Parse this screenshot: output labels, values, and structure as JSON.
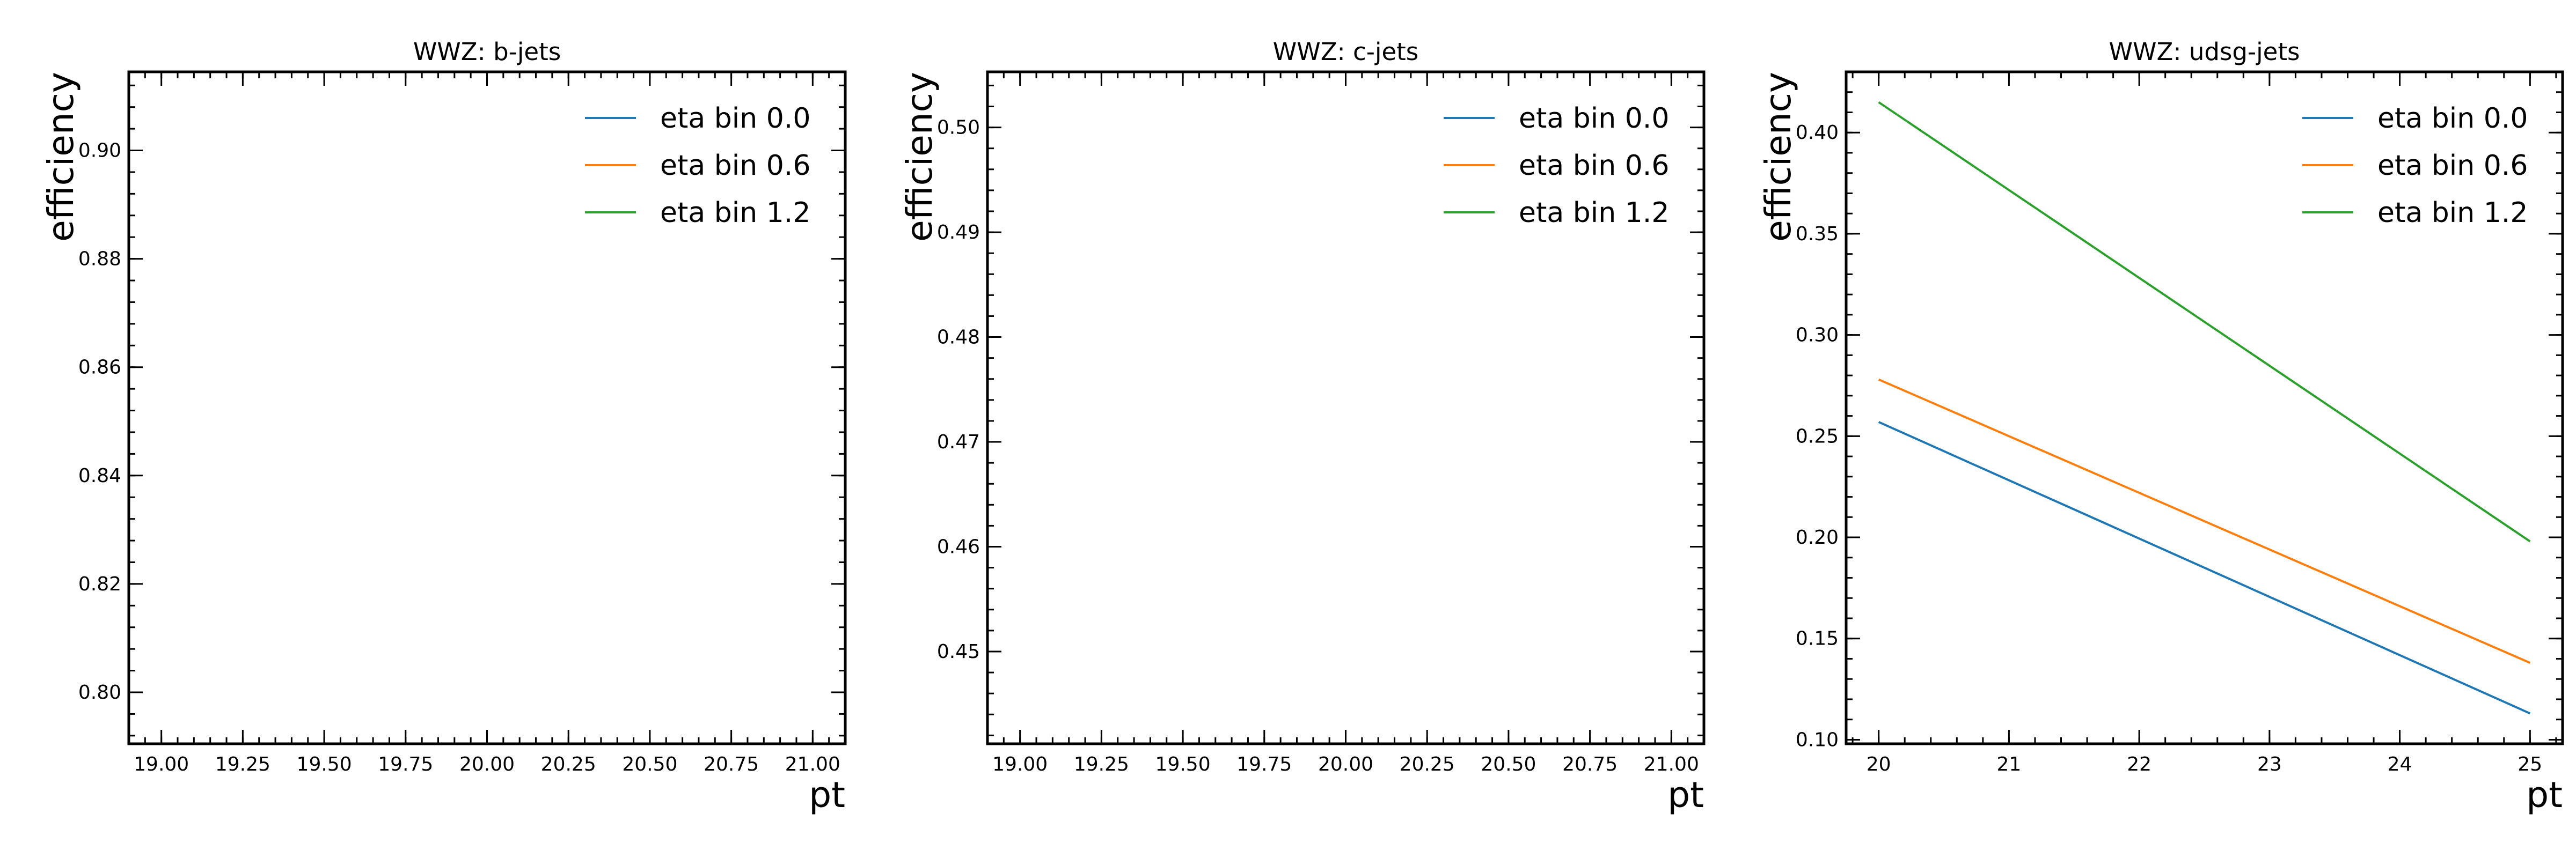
{
  "colors": {
    "eta0": "#1f77b4",
    "eta1": "#ff7f0e",
    "eta2": "#2ca02c"
  },
  "chart_data": [
    {
      "type": "line",
      "title": "WWZ: b-jets",
      "xlabel": "pt",
      "ylabel": "efficiency",
      "xlim": [
        18.9,
        21.1
      ],
      "ylim": [
        0.7905,
        0.9145
      ],
      "xticks": [
        "19.00",
        "19.25",
        "19.50",
        "19.75",
        "20.00",
        "20.25",
        "20.50",
        "20.75",
        "21.00"
      ],
      "xtick_values": [
        19.0,
        19.25,
        19.5,
        19.75,
        20.0,
        20.25,
        20.5,
        20.75,
        21.0
      ],
      "yticks": [
        "0.80",
        "0.82",
        "0.84",
        "0.86",
        "0.88",
        "0.90"
      ],
      "ytick_values": [
        0.8,
        0.82,
        0.84,
        0.86,
        0.88,
        0.9
      ],
      "legend": "top-right",
      "grid": false,
      "series": [
        {
          "name": "eta bin 0.0",
          "x": [],
          "values": []
        },
        {
          "name": "eta bin 0.6",
          "x": [],
          "values": []
        },
        {
          "name": "eta bin 1.2",
          "x": [],
          "values": []
        }
      ]
    },
    {
      "type": "line",
      "title": "WWZ: c-jets",
      "xlabel": "pt",
      "ylabel": "efficiency",
      "xlim": [
        18.9,
        21.1
      ],
      "ylim": [
        0.4412,
        0.5053
      ],
      "xticks": [
        "19.00",
        "19.25",
        "19.50",
        "19.75",
        "20.00",
        "20.25",
        "20.50",
        "20.75",
        "21.00"
      ],
      "xtick_values": [
        19.0,
        19.25,
        19.5,
        19.75,
        20.0,
        20.25,
        20.5,
        20.75,
        21.0
      ],
      "yticks": [
        "0.45",
        "0.46",
        "0.47",
        "0.48",
        "0.49",
        "0.50"
      ],
      "ytick_values": [
        0.45,
        0.46,
        0.47,
        0.48,
        0.49,
        0.5
      ],
      "legend": "top-right",
      "grid": false,
      "series": [
        {
          "name": "eta bin 0.0",
          "x": [],
          "values": []
        },
        {
          "name": "eta bin 0.6",
          "x": [],
          "values": []
        },
        {
          "name": "eta bin 1.2",
          "x": [],
          "values": []
        }
      ]
    },
    {
      "type": "line",
      "title": "WWZ: udsg-jets",
      "xlabel": "pt",
      "ylabel": "efficiency",
      "xlim": [
        19.75,
        25.25
      ],
      "ylim": [
        0.098,
        0.43
      ],
      "xticks": [
        "20",
        "21",
        "22",
        "23",
        "24",
        "25"
      ],
      "xtick_values": [
        20,
        21,
        22,
        23,
        24,
        25
      ],
      "yticks": [
        "0.10",
        "0.15",
        "0.20",
        "0.25",
        "0.30",
        "0.35",
        "0.40"
      ],
      "ytick_values": [
        0.1,
        0.15,
        0.2,
        0.25,
        0.3,
        0.35,
        0.4
      ],
      "legend": "top-right",
      "grid": false,
      "series": [
        {
          "name": "eta bin 0.0",
          "x": [
            20,
            25
          ],
          "values": [
            0.257,
            0.113
          ]
        },
        {
          "name": "eta bin 0.6",
          "x": [
            20,
            25
          ],
          "values": [
            0.278,
            0.138
          ]
        },
        {
          "name": "eta bin 1.2",
          "x": [
            20,
            25
          ],
          "values": [
            0.415,
            0.198
          ]
        }
      ]
    }
  ]
}
